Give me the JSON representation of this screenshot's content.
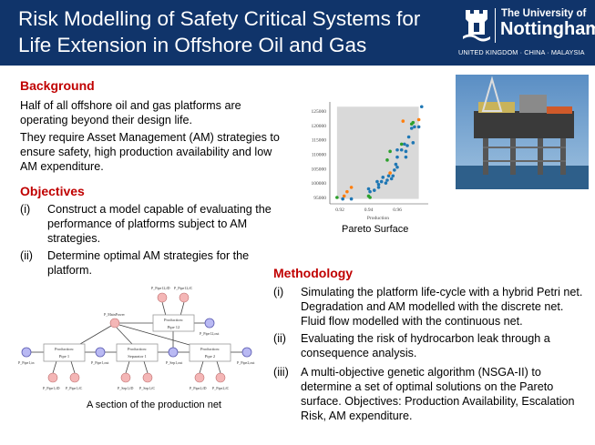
{
  "header": {
    "title": "Risk Modelling of Safety Critical Systems for Life Extension in Offshore Oil and Gas",
    "logo": {
      "line1": "The University of",
      "line2": "Nottingham",
      "line3": "UNITED KINGDOM · CHINA · MALAYSIA"
    },
    "color": "#10346a"
  },
  "background": {
    "heading": "Background",
    "p1": "Half of all offshore oil and gas platforms are operating beyond their design life.",
    "p2": "They require Asset Management (AM) strategies to ensure safety, high production availability and low AM expenditure."
  },
  "objectives": {
    "heading": "Objectives",
    "items": [
      {
        "num": "(i)",
        "text": "Construct a model capable of evaluating the performance of platforms subject to AM strategies."
      },
      {
        "num": "(ii)",
        "text": "Determine optimal AM strategies for the platform."
      }
    ]
  },
  "methodology": {
    "heading": "Methodology",
    "items": [
      {
        "num": "(i)",
        "text": "Simulating the platform life-cycle with a hybrid Petri net. Degradation and AM modelled with the discrete net. Fluid flow modelled with the continuous net."
      },
      {
        "num": "(ii)",
        "text": "Evaluating the risk of hydrocarbon leak through a consequence analysis."
      },
      {
        "num": "(iii)",
        "text": "A multi-objective genetic algorithm (NSGA-II) to determine a set of optimal solutions on the Pareto surface. Objectives: Production Availability, Escalation Risk, AM expenditure."
      }
    ]
  },
  "diagram": {
    "caption": "A section of the production net",
    "boxes": [
      {
        "l1": "Production:",
        "l2": "Pipe 1"
      },
      {
        "l1": "Production:",
        "l2": "Separator 1"
      },
      {
        "l1": "Production:",
        "l2": "Pipe 2"
      },
      {
        "l1": "Production:",
        "l2": "Pipe 12"
      }
    ],
    "labels": {
      "pipe1_in": "P_Pipe1,in",
      "pipe1_out": "P_Pipe1,out",
      "sep1_out": "P_Sep1,out",
      "pipe2_out": "P_Pipe2,out",
      "pipe12_out": "P_Pipe12,out",
      "main_power": "P_MainPower",
      "pipe1_d": "P_Pipe1,fD",
      "pipe1_c": "P_Pipe1,fC",
      "sep1_d": "P_Sep1,fD",
      "sep1_c": "P_Sep1,fC",
      "pipe2_d": "P_Pipe2,fD",
      "pipe2_c": "P_Pipe2,fC",
      "pipe12_d": "P_Pipe12,fD",
      "pipe12_c": "P_Pipe12,fC"
    }
  },
  "photo": {
    "subject": "offshore-oil-platform-photo"
  },
  "chart_data": {
    "type": "scatter",
    "caption": "Pareto Surface",
    "xlabel": "Production",
    "ylabel": "",
    "xlim": [
      0.915,
      0.98
    ],
    "ylim": [
      93500,
      127000
    ],
    "xticks": [
      0.92,
      0.94,
      0.96
    ],
    "yticks": [
      95000,
      100000,
      105000,
      110000,
      115000,
      120000,
      125000
    ],
    "shaded_region": {
      "x": [
        0.918,
        0.975
      ],
      "y": [
        94500,
        126500
      ],
      "color": "#d9d9d9"
    },
    "series": [
      {
        "color": "#1f77b4",
        "points": [
          [
            0.977,
            126500
          ],
          [
            0.972,
            119500
          ],
          [
            0.975,
            119500
          ],
          [
            0.97,
            119000
          ],
          [
            0.968,
            116000
          ],
          [
            0.971,
            114000
          ],
          [
            0.965,
            113500
          ],
          [
            0.967,
            113000
          ],
          [
            0.963,
            111500
          ],
          [
            0.966,
            111000
          ],
          [
            0.96,
            111500
          ],
          [
            0.96,
            109000
          ],
          [
            0.966,
            109000
          ],
          [
            0.959,
            106500
          ],
          [
            0.96,
            105500
          ],
          [
            0.958,
            104500
          ],
          [
            0.957,
            102500
          ],
          [
            0.956,
            101500
          ],
          [
            0.954,
            102500
          ],
          [
            0.953,
            101000
          ],
          [
            0.952,
            100000
          ],
          [
            0.95,
            102000
          ],
          [
            0.949,
            100500
          ],
          [
            0.947,
            99500
          ],
          [
            0.947,
            98500
          ],
          [
            0.946,
            100500
          ],
          [
            0.944,
            97500
          ],
          [
            0.941,
            97000
          ],
          [
            0.94,
            98000
          ],
          [
            0.928,
            94500
          ],
          [
            0.922,
            94500
          ]
        ]
      },
      {
        "color": "#ff7f0e",
        "points": [
          [
            0.964,
            121500
          ],
          [
            0.975,
            122000
          ],
          [
            0.955,
            103500
          ],
          [
            0.928,
            98500
          ],
          [
            0.925,
            97000
          ],
          [
            0.923,
            95500
          ]
        ]
      },
      {
        "color": "#2ca02c",
        "points": [
          [
            0.971,
            121000
          ],
          [
            0.97,
            120500
          ],
          [
            0.963,
            113500
          ],
          [
            0.955,
            111000
          ],
          [
            0.953,
            108000
          ],
          [
            0.94,
            95500
          ],
          [
            0.941,
            95000
          ],
          [
            0.918,
            95000
          ]
        ]
      }
    ]
  }
}
